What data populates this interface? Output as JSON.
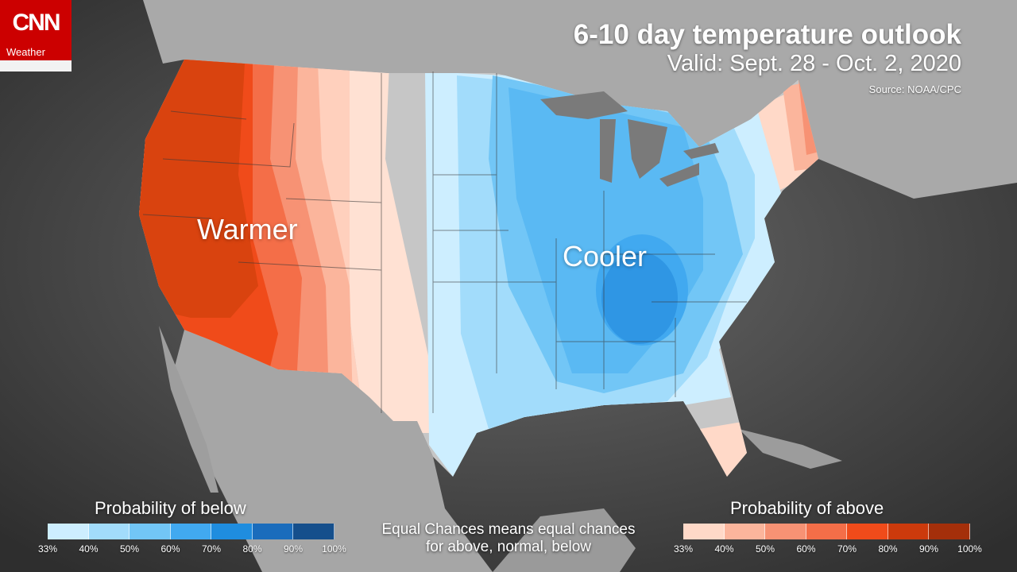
{
  "brand": {
    "name": "CNN",
    "section": "Weather"
  },
  "header": {
    "title": "6-10 day temperature outlook",
    "subtitle": "Valid: Sept. 28 - Oct. 2, 2020",
    "source": "Source: NOAA/CPC"
  },
  "map_labels": {
    "warm": "Warmer",
    "cool": "Cooler"
  },
  "legend_below": {
    "title": "Probability of below",
    "ticks": [
      "33%",
      "40%",
      "50%",
      "60%",
      "70%",
      "80%",
      "90%",
      "100%"
    ],
    "colors": [
      "#cdeeff",
      "#a2dcfb",
      "#72c6f6",
      "#41a9f0",
      "#1f8ddf",
      "#1a6cbc",
      "#154f8c"
    ]
  },
  "legend_above": {
    "title": "Probability of above",
    "ticks": [
      "33%",
      "40%",
      "50%",
      "60%",
      "70%",
      "80%",
      "90%",
      "100%"
    ],
    "colors": [
      "#ffd9c8",
      "#fbb59c",
      "#f79274",
      "#f46e48",
      "#f04b1a",
      "#cc3a0c",
      "#a42f0a"
    ]
  },
  "note": "Equal Chances means equal chances for above, normal, below",
  "colors": {
    "land_gray": "#c2c2c2",
    "water": "#505050",
    "cnn_red": "#cc0000"
  }
}
